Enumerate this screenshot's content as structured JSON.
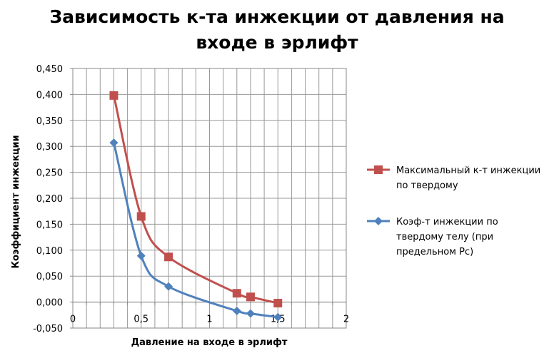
{
  "chart_data": {
    "type": "line",
    "title": "Зависимость к-та инжекции от давления на входе в эрлифт",
    "title_lines": [
      "Зависимость к-та инжекции от давления на",
      "входе в эрлифт"
    ],
    "xlabel": "Давление на входе в эрлифт",
    "ylabel": "Коэффициент инжекции",
    "xlim": [
      0,
      2
    ],
    "ylim": [
      -0.05,
      0.45
    ],
    "x_ticks": [
      "0",
      "0,5",
      "1",
      "1,5",
      "2"
    ],
    "y_ticks": [
      "-0,050",
      "0,000",
      "0,050",
      "0,100",
      "0,150",
      "0,200",
      "0,250",
      "0,300",
      "0,350",
      "0,400",
      "0,450"
    ],
    "grid": true,
    "legend_position": "right",
    "series": [
      {
        "name": "Максимальный к-т инжекции по твердому",
        "legend_lines": [
          "Максимальный  к-т инжекции",
          "по твердому"
        ],
        "color": "#c0504d",
        "marker": "square",
        "x": [
          0.3,
          0.5,
          0.7,
          1.2,
          1.3,
          1.5
        ],
        "y": [
          0.398,
          0.165,
          0.087,
          0.017,
          0.01,
          -0.002
        ]
      },
      {
        "name": "Коэф-т инжекции по твердому телу (при предельном Pc)",
        "legend_lines": [
          "Коэф-т инжекции по",
          "твердому телу (при",
          "предельном Pc)"
        ],
        "color": "#4f81bd",
        "marker": "diamond",
        "x": [
          0.3,
          0.5,
          0.7,
          1.2,
          1.3,
          1.5
        ],
        "y": [
          0.307,
          0.089,
          0.03,
          -0.017,
          -0.022,
          -0.029
        ]
      }
    ]
  }
}
